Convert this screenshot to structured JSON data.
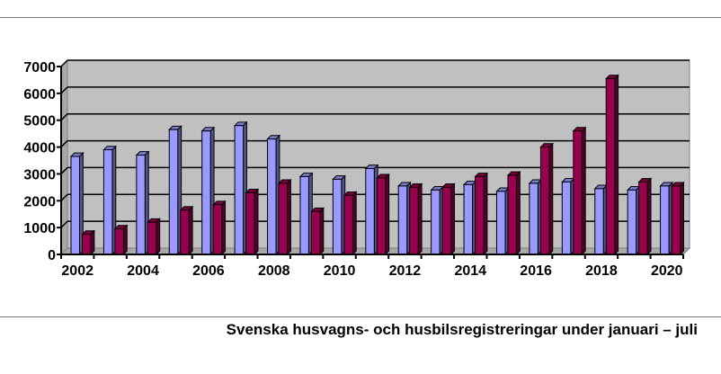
{
  "caption": "Svenska husvagns- och husbilsregistreringar under januari – juli",
  "chart_data": {
    "type": "bar",
    "style": "3d-clustered-column",
    "title": "Svenska husvagns- och husbilsregistreringar under januari – juli",
    "categories": [
      "2002",
      "2003",
      "2004",
      "2005",
      "2006",
      "2007",
      "2008",
      "2009",
      "2010",
      "2011",
      "2012",
      "2013",
      "2014",
      "2015",
      "2016",
      "2017",
      "2018",
      "2019",
      "2020"
    ],
    "x_tick_labels": [
      "2002",
      "2004",
      "2006",
      "2008",
      "2010",
      "2012",
      "2014",
      "2016",
      "2018",
      "2020"
    ],
    "series": [
      {
        "color": "#9999ff",
        "values": [
          3650,
          3900,
          3700,
          4650,
          4600,
          4800,
          4300,
          2900,
          2800,
          3200,
          2550,
          2400,
          2600,
          2350,
          2650,
          2700,
          2450,
          2400,
          2550
        ]
      },
      {
        "color": "#99004d",
        "values": [
          750,
          950,
          1200,
          1650,
          1850,
          2300,
          2650,
          1600,
          2200,
          2850,
          2500,
          2500,
          2900,
          2950,
          4000,
          4600,
          6550,
          2700,
          2550
        ]
      }
    ],
    "ylim": [
      0,
      7000
    ],
    "y_ticks": [
      "0",
      "1000",
      "2000",
      "3000",
      "4000",
      "5000",
      "6000",
      "7000"
    ],
    "xlabel": "",
    "ylabel": "",
    "grid": true,
    "plot_background": "#c0c0c0",
    "legend": "none"
  }
}
